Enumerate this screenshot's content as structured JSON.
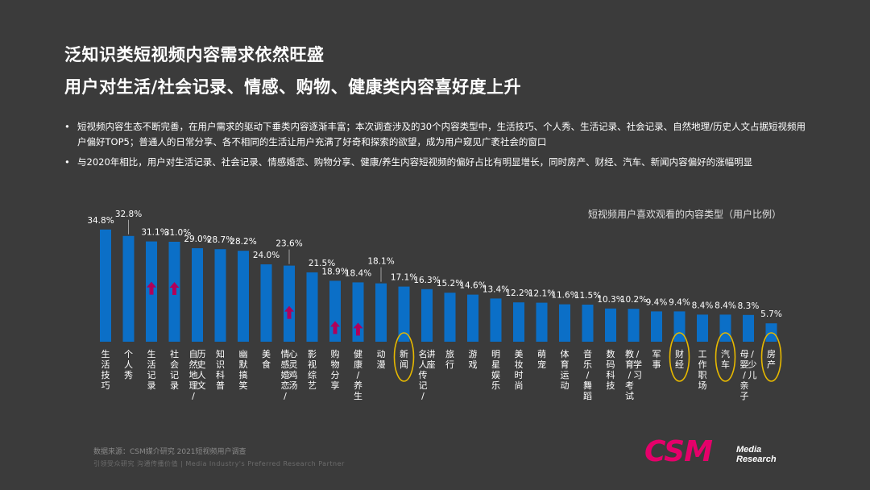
{
  "title_line1": "泛知识类短视频内容需求依然旺盛",
  "title_line2": "用户对生活/社会记录、情感、购物、健康类内容喜好度上升",
  "bullets": [
    "短视频内容生态不断完善，在用户需求的驱动下垂类内容逐渐丰富；本次调查涉及的30个内容类型中，生活技巧、个人秀、生活记录、社会记录、自然地理/历史人文占据短视频用户偏好TOP5；普通人的日常分享、各不相同的生活让用户充满了好奇和探索的欲望，成为用户窥见广袤社会的窗口",
    "与2020年相比，用户对生活记录、社会记录、情感婚恋、购物分享、健康/养生内容短视频的偏好占比有明显增长，同时房产、财经、汽车、新闻内容偏好的涨幅明显"
  ],
  "chart_data": {
    "type": "bar",
    "title": "短视频用户喜欢观看的内容类型（用户比例）",
    "unit": "%",
    "categories": [
      "生活技巧",
      "个人秀",
      "生活记录",
      "社会记录",
      "自然地理/历史人文",
      "知识科普",
      "幽默搞笑",
      "美食",
      "情感婚恋/心灵鸡汤",
      "影视综艺",
      "购物分享",
      "健康/养生",
      "动漫",
      "新闻",
      "名人传记/讲座",
      "旅行",
      "游戏",
      "明星娱乐",
      "美妆时尚",
      "萌宠",
      "体育运动",
      "音乐/舞蹈",
      "数码科技",
      "教育/考试/学习",
      "军事",
      "财经",
      "工作职场",
      "汽车",
      "母婴/亲子/少儿",
      "房产"
    ],
    "label_lines": [
      [
        "生活",
        "技巧"
      ],
      [
        "个人秀"
      ],
      [
        "生活",
        "记录"
      ],
      [
        "社会",
        "记录"
      ],
      [
        "自然地理/",
        "历史人文"
      ],
      [
        "知识",
        "科普"
      ],
      [
        "幽默",
        "搞笑"
      ],
      [
        "美食"
      ],
      [
        "情感",
        "婚恋/",
        "心灵",
        "鸡汤"
      ],
      [
        "影视",
        "综艺"
      ],
      [
        "购物",
        "分享"
      ],
      [
        "健康/",
        "养生"
      ],
      [
        "动漫"
      ],
      [
        "新闻"
      ],
      [
        "名人",
        "传记/",
        "讲座"
      ],
      [
        "旅行"
      ],
      [
        "游戏"
      ],
      [
        "明星",
        "娱乐"
      ],
      [
        "美妆",
        "时尚"
      ],
      [
        "萌宠"
      ],
      [
        "体育",
        "运动"
      ],
      [
        "音乐/",
        "舞蹈"
      ],
      [
        "数码",
        "科技"
      ],
      [
        "教育/",
        "考试/",
        "学习"
      ],
      [
        "军事"
      ],
      [
        "财经"
      ],
      [
        "工作",
        "职场"
      ],
      [
        "汽车"
      ],
      [
        "母婴/",
        "亲子/",
        "少儿"
      ],
      [
        "房产"
      ]
    ],
    "values": [
      34.8,
      32.8,
      31.1,
      31.0,
      29.0,
      28.7,
      28.2,
      24.0,
      23.6,
      21.5,
      18.9,
      18.4,
      18.1,
      17.1,
      16.3,
      15.2,
      14.6,
      13.4,
      12.2,
      12.1,
      11.6,
      11.5,
      10.3,
      10.2,
      9.4,
      9.4,
      8.4,
      8.4,
      8.3,
      5.7
    ],
    "value_labels": [
      "34.8%",
      "32.8%",
      "31.1%",
      "31.0%",
      "29.0%",
      "28.7%",
      "28.2%",
      "24.0%",
      "23.6%",
      "21.5%",
      "18.9%",
      "18.4%",
      "18.1%",
      "17.1%",
      "16.3%",
      "15.2%",
      "14.6%",
      "13.4%",
      "12.2%",
      "12.1%",
      "11.6%",
      "11.5%",
      "10.3%",
      "10.2%",
      "9.4%",
      "9.4%",
      "8.4%",
      "8.4%",
      "8.3%",
      "5.7%"
    ],
    "increased_vs_2020": [
      "生活记录",
      "社会记录",
      "情感婚恋/心灵鸡汤",
      "购物分享",
      "健康/养生"
    ],
    "highlighted": [
      "新闻",
      "财经",
      "汽车",
      "房产"
    ],
    "bar_color": "#0b6fc7",
    "arrow_color": "#b0005a",
    "circle_color": "#e6b800"
  },
  "footer": {
    "source": "数据来源：CSM媒介研究 2021短视频用户调查",
    "tagline": "引领受众研究  沟通传播价值 | Media Industry's Preferred  Research  Partner"
  },
  "logo": {
    "text": "CSM",
    "line1": "Media",
    "line2": "Research",
    "color": "#e5006a"
  }
}
